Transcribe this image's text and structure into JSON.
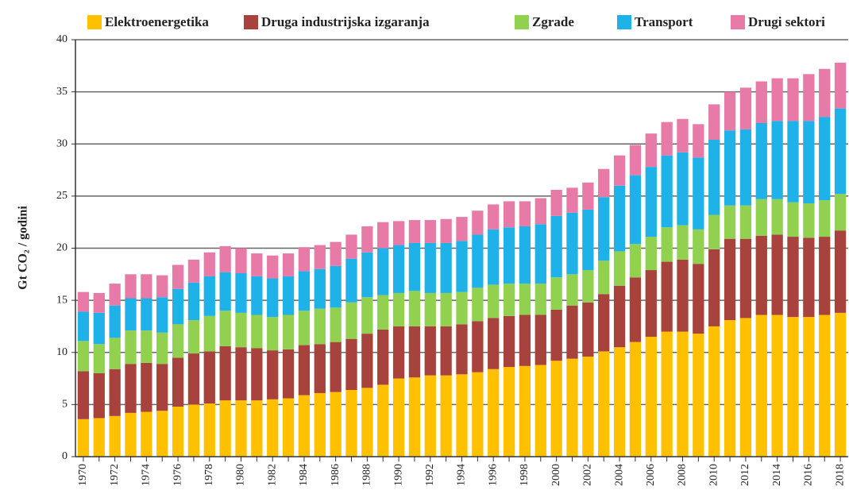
{
  "chart_data": {
    "type": "stacked_bar",
    "y_label": "Gt CO₂ / godini",
    "categories": [
      "1970",
      null,
      "1972",
      null,
      "1974",
      null,
      "1976",
      null,
      "1978",
      null,
      "1980",
      null,
      "1982",
      null,
      "1984",
      null,
      "1986",
      null,
      "1988",
      null,
      "1990",
      null,
      "1992",
      null,
      "1994",
      null,
      "1996",
      null,
      "1998",
      null,
      "2000",
      null,
      "2002",
      null,
      "2004",
      null,
      "2006",
      null,
      "2008",
      null,
      "2010",
      null,
      "2012",
      null,
      "2014",
      null,
      "2016",
      null,
      "2018"
    ],
    "series": [
      {
        "name": "Elektroenergetika",
        "color": "#ffc000",
        "values": [
          3.6,
          3.7,
          3.9,
          4.2,
          4.3,
          4.4,
          4.8,
          5.0,
          5.1,
          5.4,
          5.4,
          5.4,
          5.5,
          5.6,
          5.9,
          6.1,
          6.2,
          6.4,
          6.6,
          6.9,
          7.5,
          7.6,
          7.8,
          7.8,
          7.9,
          8.1,
          8.4,
          8.6,
          8.7,
          8.8,
          9.2,
          9.4,
          9.6,
          10.1,
          10.5,
          11.0,
          11.5,
          12.0,
          12.0,
          11.8,
          12.5,
          13.1,
          13.3,
          13.6,
          13.6,
          13.4,
          13.4,
          13.6,
          13.8
        ]
      },
      {
        "name": "Druga industrijska izgaranja",
        "color": "#a8423d",
        "values": [
          4.6,
          4.3,
          4.5,
          4.7,
          4.7,
          4.5,
          4.7,
          4.9,
          5.0,
          5.2,
          5.1,
          5.0,
          4.7,
          4.7,
          4.8,
          4.7,
          4.8,
          4.9,
          5.2,
          5.3,
          5.0,
          4.9,
          4.7,
          4.7,
          4.8,
          4.9,
          4.9,
          4.9,
          4.9,
          4.8,
          4.9,
          5.1,
          5.2,
          5.5,
          5.9,
          6.2,
          6.4,
          6.7,
          6.9,
          6.7,
          7.4,
          7.8,
          7.6,
          7.6,
          7.7,
          7.7,
          7.6,
          7.5,
          7.9
        ]
      },
      {
        "name": "Zgrade",
        "color": "#92d050",
        "values": [
          2.9,
          2.8,
          3.0,
          3.2,
          3.1,
          3.0,
          3.2,
          3.2,
          3.4,
          3.4,
          3.3,
          3.2,
          3.2,
          3.3,
          3.3,
          3.4,
          3.3,
          3.5,
          3.5,
          3.3,
          3.2,
          3.4,
          3.2,
          3.2,
          3.1,
          3.2,
          3.2,
          3.1,
          3.0,
          3.0,
          3.1,
          3.0,
          3.1,
          3.2,
          3.3,
          3.2,
          3.2,
          3.3,
          3.3,
          3.3,
          3.3,
          3.2,
          3.2,
          3.5,
          3.4,
          3.3,
          3.3,
          3.5,
          3.5
        ]
      },
      {
        "name": "Transport",
        "color": "#1eb2e8",
        "values": [
          2.8,
          3.0,
          3.1,
          3.1,
          3.1,
          3.4,
          3.4,
          3.6,
          3.8,
          3.7,
          3.8,
          3.7,
          3.7,
          3.7,
          3.8,
          3.8,
          4.0,
          4.2,
          4.3,
          4.5,
          4.6,
          4.6,
          4.8,
          4.8,
          4.9,
          5.1,
          5.3,
          5.4,
          5.5,
          5.7,
          5.9,
          5.9,
          5.8,
          6.1,
          6.3,
          6.6,
          6.7,
          6.9,
          7.0,
          6.9,
          7.2,
          7.2,
          7.3,
          7.3,
          7.5,
          7.8,
          7.9,
          8.0,
          8.2
        ]
      },
      {
        "name": "Drugi sektori",
        "color": "#e77aa6",
        "values": [
          1.9,
          1.9,
          2.1,
          2.3,
          2.3,
          2.1,
          2.3,
          2.2,
          2.3,
          2.5,
          2.4,
          2.2,
          2.2,
          2.2,
          2.3,
          2.3,
          2.3,
          2.3,
          2.5,
          2.5,
          2.3,
          2.2,
          2.2,
          2.3,
          2.3,
          2.3,
          2.4,
          2.5,
          2.4,
          2.5,
          2.5,
          2.4,
          2.6,
          2.7,
          2.9,
          2.9,
          3.2,
          3.2,
          3.2,
          3.2,
          3.4,
          3.7,
          4.0,
          4.0,
          4.1,
          4.1,
          4.5,
          4.6,
          4.4
        ]
      }
    ],
    "ylim": [
      0,
      40
    ],
    "yticks": [
      0,
      5,
      10,
      15,
      20,
      25,
      30,
      35,
      40
    ],
    "grid": true,
    "legend": "top"
  }
}
